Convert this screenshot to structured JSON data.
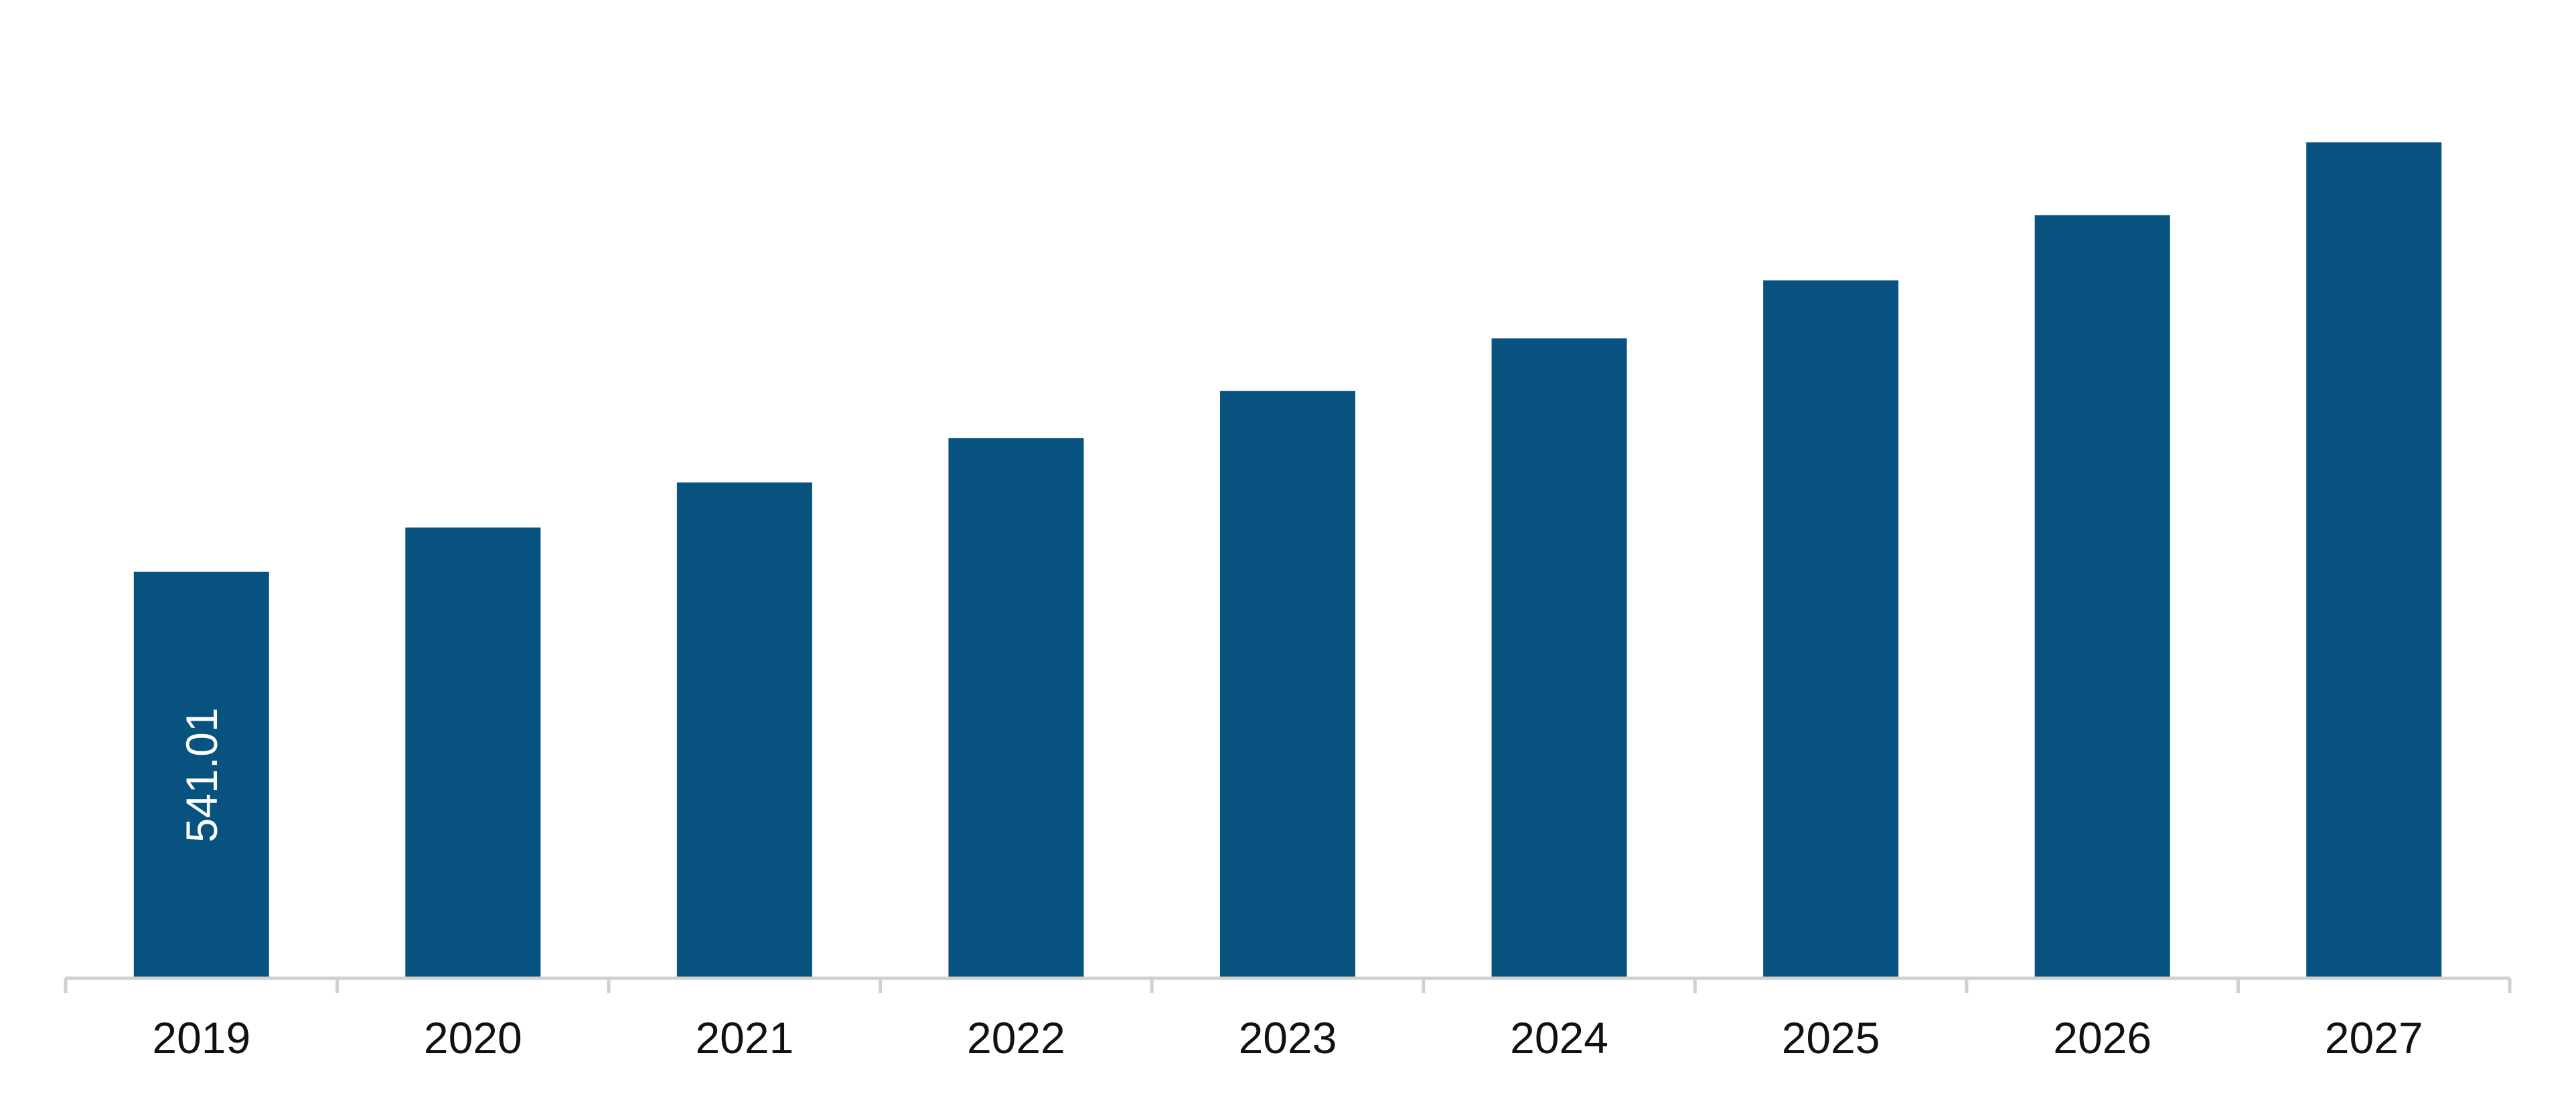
{
  "chart_data": {
    "type": "bar",
    "title": "",
    "xlabel": "",
    "ylabel": "",
    "categories": [
      "2019",
      "2020",
      "2021",
      "2022",
      "2023",
      "2024",
      "2025",
      "2026",
      "2027"
    ],
    "values": [
      541.01,
      600,
      660,
      719,
      782,
      852,
      929,
      1016,
      1113
    ],
    "data_labels": [
      "541.01",
      "",
      "",
      "",
      "",
      "",
      "",
      "",
      ""
    ],
    "ylim": [
      0,
      1240
    ],
    "bar_color": "#08527f",
    "axis_color": "#d0d0d0",
    "grid": false,
    "legend": "none"
  }
}
